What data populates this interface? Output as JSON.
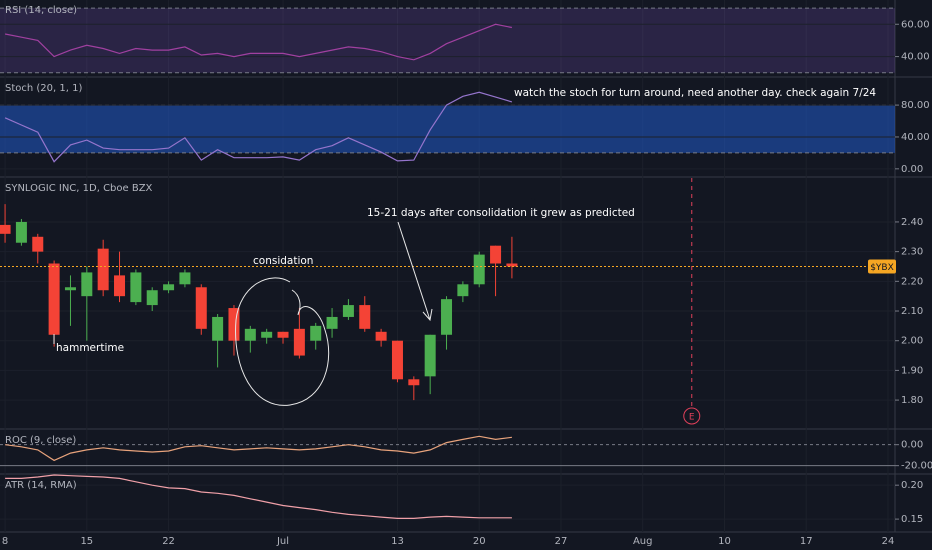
{
  "chart_data": [
    {
      "type": "line",
      "title": "RSI (14, close)",
      "color": "#a040a0",
      "band": [
        30,
        70
      ],
      "band_color": "rgba(126,87,194,0.22)",
      "values": [
        54,
        52,
        50,
        40,
        44,
        47,
        45,
        42,
        45,
        44,
        44,
        46,
        41,
        42,
        40,
        42,
        42,
        42,
        40,
        42,
        44,
        46,
        45,
        43,
        40,
        38,
        42,
        48,
        52,
        56,
        60,
        58
      ],
      "ylim": [
        28,
        75
      ],
      "yticks": [
        {
          "value": 60,
          "label": "60.00"
        },
        {
          "value": 40,
          "label": "40.00"
        }
      ]
    },
    {
      "type": "line",
      "title": "Stoch (20, 1, 1)",
      "color": "#9575cd",
      "band": [
        20,
        80
      ],
      "band_color": "rgba(33,90,200,0.55)",
      "values": [
        64,
        55,
        46,
        9,
        30,
        36,
        26,
        24,
        24,
        24,
        26,
        39,
        11,
        24,
        14,
        14,
        14,
        15,
        11,
        24,
        29,
        39,
        30,
        21,
        10,
        11,
        49,
        80,
        91,
        96,
        90,
        84
      ],
      "ylim": [
        -9,
        114
      ],
      "yticks": [
        {
          "value": 80,
          "label": "80.00"
        },
        {
          "value": 40,
          "label": "40.00"
        },
        {
          "value": 0,
          "label": "0.00"
        }
      ],
      "annotations": [
        "watch the stoch for turn around, need another day. check again 7/24"
      ]
    },
    {
      "type": "candlestick",
      "title": "SYNLOGIC INC, 1D, Cboe BZX",
      "up_color": "#4caf50",
      "down_color": "#f44336",
      "candles": [
        {
          "open": 2.39,
          "high": 2.46,
          "low": 2.33,
          "close": 2.36
        },
        {
          "open": 2.33,
          "high": 2.41,
          "low": 2.32,
          "close": 2.4
        },
        {
          "open": 2.35,
          "high": 2.36,
          "low": 2.26,
          "close": 2.3
        },
        {
          "open": 2.26,
          "high": 2.27,
          "low": 1.98,
          "close": 2.02
        },
        {
          "open": 2.17,
          "high": 2.22,
          "low": 2.05,
          "close": 2.18
        },
        {
          "open": 2.15,
          "high": 2.25,
          "low": 2.0,
          "close": 2.23
        },
        {
          "open": 2.31,
          "high": 2.34,
          "low": 2.15,
          "close": 2.17
        },
        {
          "open": 2.22,
          "high": 2.3,
          "low": 2.13,
          "close": 2.15
        },
        {
          "open": 2.13,
          "high": 2.24,
          "low": 2.12,
          "close": 2.23
        },
        {
          "open": 2.12,
          "high": 2.18,
          "low": 2.1,
          "close": 2.17
        },
        {
          "open": 2.17,
          "high": 2.2,
          "low": 2.16,
          "close": 2.19
        },
        {
          "open": 2.19,
          "high": 2.24,
          "low": 2.18,
          "close": 2.23
        },
        {
          "open": 2.18,
          "high": 2.19,
          "low": 2.02,
          "close": 2.04
        },
        {
          "open": 2.0,
          "high": 2.09,
          "low": 1.91,
          "close": 2.08
        },
        {
          "open": 2.11,
          "high": 2.12,
          "low": 1.95,
          "close": 2.0
        },
        {
          "open": 2.0,
          "high": 2.05,
          "low": 1.96,
          "close": 2.04
        },
        {
          "open": 2.01,
          "high": 2.04,
          "low": 1.99,
          "close": 2.03
        },
        {
          "open": 2.03,
          "high": 2.03,
          "low": 1.99,
          "close": 2.01
        },
        {
          "open": 2.04,
          "high": 2.11,
          "low": 1.94,
          "close": 1.95
        },
        {
          "open": 2.0,
          "high": 2.06,
          "low": 1.97,
          "close": 2.05
        },
        {
          "open": 2.04,
          "high": 2.11,
          "low": 2.01,
          "close": 2.08
        },
        {
          "open": 2.08,
          "high": 2.14,
          "low": 2.07,
          "close": 2.12
        },
        {
          "open": 2.12,
          "high": 2.15,
          "low": 2.03,
          "close": 2.04
        },
        {
          "open": 2.03,
          "high": 2.04,
          "low": 1.98,
          "close": 2.0
        },
        {
          "open": 2.0,
          "high": 2.0,
          "low": 1.86,
          "close": 1.87
        },
        {
          "open": 1.87,
          "high": 1.88,
          "low": 1.8,
          "close": 1.85
        },
        {
          "open": 1.88,
          "high": 2.02,
          "low": 1.82,
          "close": 2.02
        },
        {
          "open": 2.02,
          "high": 2.15,
          "low": 1.97,
          "close": 2.14
        },
        {
          "open": 2.15,
          "high": 2.2,
          "low": 2.13,
          "close": 2.19
        },
        {
          "open": 2.19,
          "high": 2.3,
          "low": 2.18,
          "close": 2.29
        },
        {
          "open": 2.32,
          "high": 2.32,
          "low": 2.15,
          "close": 2.26
        },
        {
          "open": 2.26,
          "high": 2.35,
          "low": 2.21,
          "close": 2.25
        }
      ],
      "ylim": [
        1.706,
        2.548
      ],
      "yticks": [
        {
          "value": 2.4,
          "label": "2.40"
        },
        {
          "value": 2.3,
          "label": "2.30"
        },
        {
          "value": 2.2,
          "label": "2.20"
        },
        {
          "value": 2.1,
          "label": "2.10"
        },
        {
          "value": 2.0,
          "label": "2.00"
        },
        {
          "value": 1.9,
          "label": "1.90"
        },
        {
          "value": 1.8,
          "label": "1.80"
        }
      ],
      "price_line": {
        "value": 2.25,
        "label": "$YBX",
        "color": "#f5a623"
      },
      "earnings": {
        "x": 42,
        "label": "E",
        "color": "#e0405a"
      },
      "annotations": [
        "15-21 days after consolidation it grew as predicted",
        "considation",
        "hammertime"
      ],
      "xlim": [
        -0.31,
        54.43
      ],
      "xticks": [
        {
          "value": 0,
          "label": "8"
        },
        {
          "value": 5,
          "label": "15"
        },
        {
          "value": 10,
          "label": "22"
        },
        {
          "value": 17,
          "label": "Jul"
        },
        {
          "value": 24,
          "label": "13"
        },
        {
          "value": 29,
          "label": "20"
        },
        {
          "value": 34,
          "label": "27"
        },
        {
          "value": 39,
          "label": "Aug"
        },
        {
          "value": 44,
          "label": "10"
        },
        {
          "value": 49,
          "label": "17"
        },
        {
          "value": 54,
          "label": "24"
        }
      ]
    },
    {
      "type": "line",
      "title": "ROC (9, close)",
      "color": "#e8a37c",
      "values": [
        0,
        -2,
        -5,
        -15,
        -8,
        -5,
        -3,
        -5,
        -6,
        -7,
        -6,
        -2,
        -1,
        -3,
        -5,
        -4,
        -3,
        -4,
        -5,
        -4,
        -2,
        0,
        -2,
        -5,
        -6,
        -8,
        -5,
        2,
        5,
        8,
        5,
        7
      ],
      "ylim": [
        -27,
        14
      ],
      "yticks": [
        {
          "value": 0,
          "label": "0.00"
        },
        {
          "value": -20,
          "label": "-20.00"
        }
      ]
    },
    {
      "type": "line",
      "title": "ATR (14, RMA)",
      "color": "#f0a0a8",
      "values": [
        0.21,
        0.21,
        0.212,
        0.215,
        0.214,
        0.213,
        0.212,
        0.21,
        0.205,
        0.2,
        0.196,
        0.195,
        0.19,
        0.188,
        0.185,
        0.18,
        0.175,
        0.17,
        0.167,
        0.164,
        0.16,
        0.157,
        0.155,
        0.153,
        0.151,
        0.151,
        0.153,
        0.154,
        0.153,
        0.152,
        0.152,
        0.152
      ],
      "ylim": [
        0.131,
        0.215
      ],
      "yticks": [
        {
          "value": 0.2,
          "label": "0.20"
        },
        {
          "value": 0.15,
          "label": "0.15"
        }
      ]
    }
  ]
}
